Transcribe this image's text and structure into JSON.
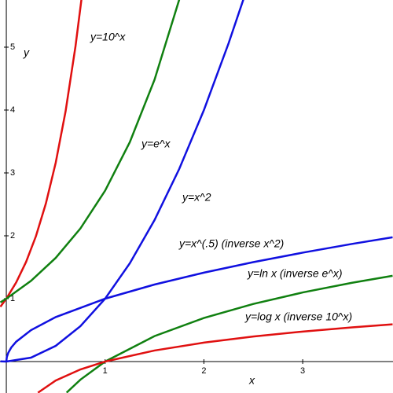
{
  "chart_data": {
    "type": "line",
    "x_label": "x",
    "y_label": "y",
    "xlim": [
      -0.064,
      3.914
    ],
    "ylim": [
      -0.5,
      5.75
    ],
    "xticks": [
      1,
      2,
      3
    ],
    "yticks": [
      1,
      2,
      3,
      4,
      5
    ],
    "annotations": [
      "y=10^x",
      "y=e^x",
      "y=x^2",
      "y=x^(.5) (inverse x^2)",
      "y=ln x (inverse  e^x)",
      "y=log x (inverse 10^x)"
    ],
    "series": [
      {
        "color": "#e01010",
        "x": [
          -0.06,
          0,
          0.1,
          0.2,
          0.3,
          0.4,
          0.5,
          0.6,
          0.7,
          0.76
        ],
        "values": [
          0.871,
          1,
          1.259,
          1.585,
          1.995,
          2.512,
          3.162,
          3.981,
          5.012,
          5.754
        ]
      },
      {
        "color": "#108010",
        "x": [
          -0.06,
          0,
          0.25,
          0.5,
          0.75,
          1,
          1.25,
          1.5,
          1.75
        ],
        "values": [
          0.942,
          1,
          1.284,
          1.649,
          2.117,
          2.718,
          3.49,
          4.482,
          5.755
        ]
      },
      {
        "color": "#1010e0",
        "x": [
          -0.06,
          0,
          0.25,
          0.5,
          0.75,
          1,
          1.25,
          1.5,
          1.75,
          2,
          2.25,
          2.4
        ],
        "values": [
          0.0036,
          0,
          0.0625,
          0.25,
          0.5625,
          1,
          1.5625,
          2.25,
          3.0625,
          4,
          5.0625,
          5.76
        ]
      },
      {
        "color": "#1010e0",
        "x": [
          0,
          0.005,
          0.02,
          0.05,
          0.1,
          0.25,
          0.5,
          1,
          1.5,
          2,
          2.5,
          3,
          3.5,
          3.91
        ],
        "values": [
          0,
          0.071,
          0.141,
          0.224,
          0.316,
          0.5,
          0.707,
          1,
          1.225,
          1.414,
          1.581,
          1.732,
          1.871,
          1.977
        ]
      },
      {
        "color": "#108010",
        "x": [
          0.61,
          0.75,
          1,
          1.5,
          2,
          2.5,
          3,
          3.5,
          3.91
        ],
        "values": [
          -0.494,
          -0.288,
          0,
          0.405,
          0.693,
          0.916,
          1.099,
          1.253,
          1.364
        ]
      },
      {
        "color": "#e01010",
        "x": [
          0.32,
          0.5,
          0.75,
          1,
          1.5,
          2,
          2.5,
          3,
          3.5,
          3.91
        ],
        "values": [
          -0.495,
          -0.301,
          -0.125,
          0,
          0.176,
          0.301,
          0.398,
          0.477,
          0.544,
          0.592
        ]
      }
    ]
  }
}
